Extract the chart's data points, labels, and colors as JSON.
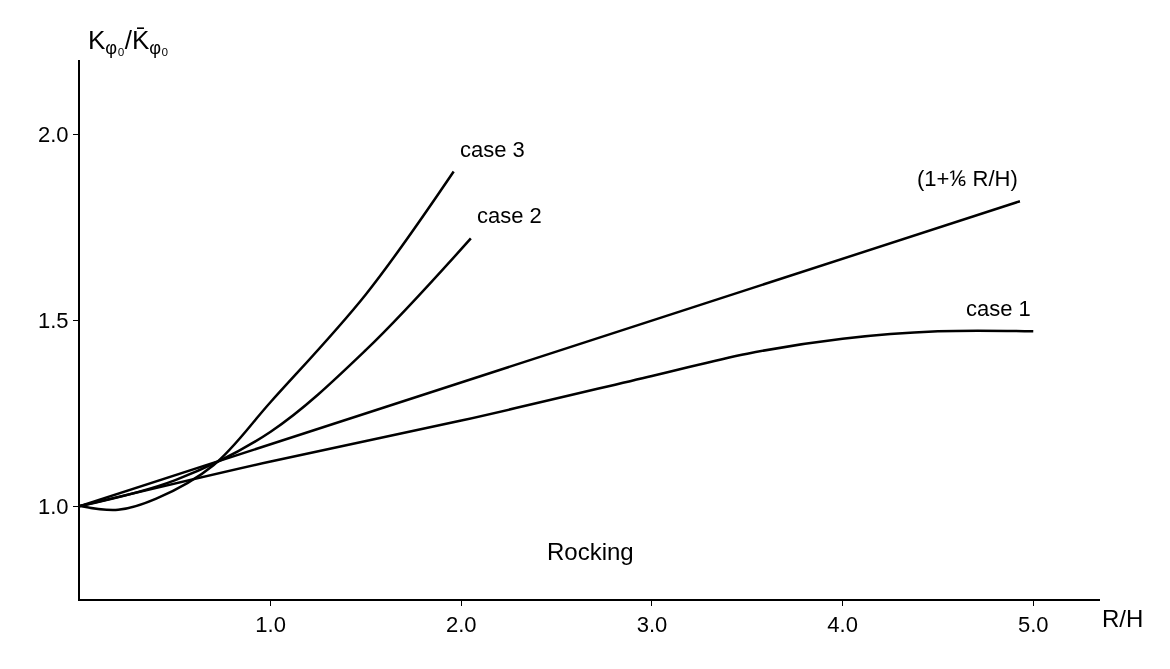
{
  "chart_data": {
    "type": "line",
    "xlabel": "R/H",
    "ylabel": "K$_{φ₀}$/K̄$_{φ₀}$",
    "series": [
      {
        "name": "case 3",
        "color": "#000000",
        "x": [
          0,
          0.2,
          0.4,
          0.7,
          1.0,
          1.5,
          1.96
        ],
        "values": [
          1.0,
          0.99,
          1.02,
          1.11,
          1.28,
          1.57,
          1.9
        ]
      },
      {
        "name": "case 2",
        "color": "#000000",
        "x": [
          0,
          0.5,
          1.0,
          1.5,
          2.05
        ],
        "values": [
          1.0,
          1.07,
          1.2,
          1.42,
          1.72
        ]
      },
      {
        "name": "(1+⅙ R/H)",
        "color": "#000000",
        "x": [
          0,
          4.93
        ],
        "values": [
          1.0,
          1.82
        ]
      },
      {
        "name": "case 1",
        "color": "#000000",
        "x": [
          0,
          1,
          2,
          3,
          3.5,
          4,
          4.5,
          5
        ],
        "values": [
          1.0,
          1.12,
          1.23,
          1.35,
          1.41,
          1.45,
          1.47,
          1.47
        ]
      }
    ],
    "annotations": [
      "Rocking"
    ],
    "xlim": [
      0,
      5.35
    ],
    "ylim": [
      0.75,
      2.2
    ],
    "xticks": [
      {
        "value": 1.0,
        "label": "1.0"
      },
      {
        "value": 2.0,
        "label": "2.0"
      },
      {
        "value": 3.0,
        "label": "3.0"
      },
      {
        "value": 4.0,
        "label": "4.0"
      },
      {
        "value": 5.0,
        "label": "5.0"
      }
    ],
    "yticks": [
      {
        "value": 1.0,
        "label": "1.0"
      },
      {
        "value": 1.5,
        "label": "1.5"
      },
      {
        "value": 2.0,
        "label": "2.0"
      }
    ],
    "legend": false,
    "marker": "none",
    "line_style": "solid"
  }
}
